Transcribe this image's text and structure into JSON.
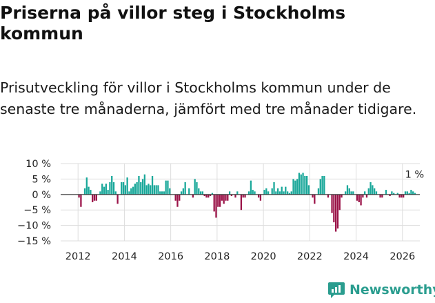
{
  "chart_data": {
    "type": "bar",
    "title": "Priserna på villor steg i Stockholms kommun",
    "subtitle": "Prisutveckling för villor i Stockholms kommun under de senaste tre månaderna, jämfört med tre månader tidigare.",
    "xlabel": "",
    "ylabel": "",
    "y_tick_labels": [
      "10 %",
      "5 %",
      "0 %",
      "−5 %",
      "−10 %",
      "−15 %"
    ],
    "y_tick_values": [
      10,
      5,
      0,
      -5,
      -10,
      -15
    ],
    "ylim": [
      -15,
      10
    ],
    "x_tick_labels": [
      "2012",
      "2014",
      "2016",
      "2018",
      "2020",
      "2022",
      "2024",
      "2026"
    ],
    "x_tick_values": [
      2012,
      2014,
      2016,
      2018,
      2020,
      2022,
      2024,
      2026
    ],
    "xlim": [
      2011.25,
      2026.75
    ],
    "start_year": 2012,
    "start_month": 1,
    "bar_unit": "month",
    "positive_color": "#1aa89a",
    "negative_color": "#9b1449",
    "grid": true,
    "annotation": {
      "text": "1 %",
      "value": 1
    },
    "series": [
      {
        "name": "Prisutveckling",
        "values": [
          -1,
          -4,
          0,
          2,
          5.5,
          2.5,
          1.5,
          -2.5,
          -2,
          -2,
          0,
          1,
          3.5,
          2.5,
          3.5,
          1.5,
          4,
          6,
          4,
          1,
          -3,
          0,
          4,
          4,
          3,
          5.5,
          1,
          2,
          2.5,
          3.5,
          4,
          6,
          4,
          5,
          6.5,
          3,
          3.5,
          3,
          6,
          3,
          3,
          3,
          1,
          1,
          1,
          4.5,
          4.5,
          2,
          0,
          0,
          -2,
          -4,
          -2,
          1,
          2,
          4,
          0,
          2,
          0,
          -1,
          5,
          4,
          2,
          1,
          1,
          -0.5,
          -1,
          -1,
          -0.5,
          0.5,
          -5.5,
          -7.5,
          -4,
          -4,
          -2,
          -3,
          -2,
          -2,
          1,
          -0.5,
          0,
          -1,
          1,
          0,
          -5,
          -1,
          -1,
          0,
          1,
          4.5,
          1.5,
          1,
          0,
          -1,
          -2,
          0,
          1.5,
          2,
          1,
          0,
          2,
          4,
          1,
          2,
          1,
          2.5,
          1,
          2.5,
          1,
          0.5,
          1,
          5,
          4.5,
          5,
          7,
          6.5,
          7,
          6,
          6,
          3,
          0,
          -1,
          -3,
          0,
          2,
          5,
          6,
          6,
          0,
          -1,
          0,
          -6,
          -9,
          -12,
          -11,
          -5,
          -1,
          0,
          1,
          3,
          2,
          1,
          1,
          0,
          -2,
          -2.5,
          -3.5,
          -1,
          1,
          -1,
          2,
          4,
          3,
          2,
          1,
          0,
          -1,
          -1,
          0,
          1.5,
          0,
          -0.5,
          1,
          0.5,
          0,
          0.5,
          -1,
          -1,
          -1,
          1,
          1,
          0.5,
          1.5,
          1,
          0.5,
          0
        ]
      }
    ]
  },
  "brand": {
    "name": "Newsworthy",
    "color": "#2a9d8f"
  }
}
